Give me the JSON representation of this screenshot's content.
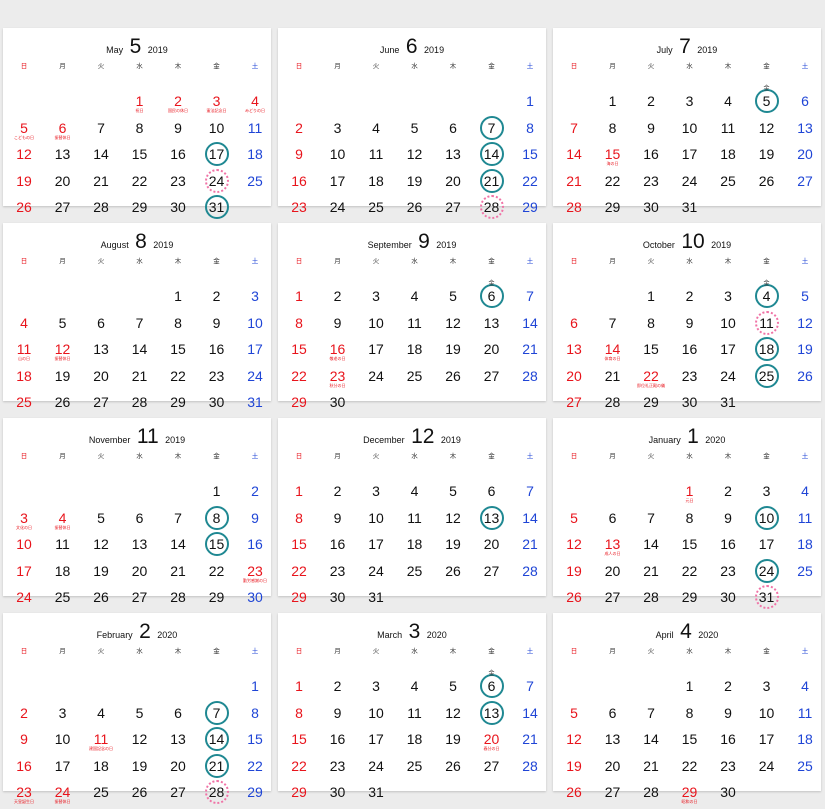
{
  "weekdays": [
    "日",
    "月",
    "火",
    "水",
    "木",
    "金",
    "土"
  ],
  "colors": {
    "sunday": "#e8141c",
    "saturday": "#1f45d6",
    "circle": "#1f8892",
    "dotted": "#f073a6"
  },
  "months": [
    {
      "name": "May",
      "num": "5",
      "year": "2019",
      "first": 3,
      "days": 31,
      "holidays": {
        "1": "祝日",
        "2": "国民の休日",
        "3": "憲法記念日",
        "4": "みどりの日",
        "5": "こどもの日",
        "6": "振替休日"
      },
      "circled": [
        17,
        31
      ],
      "dotted": [
        24
      ],
      "small_marks": {}
    },
    {
      "name": "June",
      "num": "6",
      "year": "2019",
      "first": 6,
      "days": 30,
      "holidays": {},
      "circled": [
        7,
        14,
        21
      ],
      "dotted": [
        28
      ],
      "small_marks": {}
    },
    {
      "name": "July",
      "num": "7",
      "year": "2019",
      "first": 1,
      "days": 31,
      "holidays": {
        "15": "海の日"
      },
      "circled": [
        5
      ],
      "dotted": [],
      "small_marks": {
        "5": "金"
      }
    },
    {
      "name": "August",
      "num": "8",
      "year": "2019",
      "first": 4,
      "days": 31,
      "holidays": {
        "11": "山の日",
        "12": "振替休日"
      },
      "circled": [],
      "dotted": [],
      "small_marks": {}
    },
    {
      "name": "September",
      "num": "9",
      "year": "2019",
      "first": 0,
      "days": 30,
      "holidays": {
        "16": "敬老の日",
        "23": "秋分の日"
      },
      "circled": [
        6
      ],
      "dotted": [],
      "small_marks": {
        "6": "金"
      }
    },
    {
      "name": "October",
      "num": "10",
      "year": "2019",
      "first": 2,
      "days": 31,
      "holidays": {
        "14": "体育の日",
        "22": "即位礼正殿の儀"
      },
      "circled": [
        4,
        18,
        25
      ],
      "dotted": [
        11
      ],
      "small_marks": {
        "4": "金"
      }
    },
    {
      "name": "November",
      "num": "11",
      "year": "2019",
      "first": 5,
      "days": 30,
      "holidays": {
        "3": "文化の日",
        "4": "振替休日",
        "23": "勤労感謝の日"
      },
      "circled": [
        8,
        15
      ],
      "dotted": [],
      "small_marks": {}
    },
    {
      "name": "December",
      "num": "12",
      "year": "2019",
      "first": 0,
      "days": 31,
      "holidays": {},
      "circled": [
        13
      ],
      "dotted": [],
      "small_marks": {}
    },
    {
      "name": "January",
      "num": "1",
      "year": "2020",
      "first": 3,
      "days": 31,
      "holidays": {
        "1": "元日",
        "13": "成人の日"
      },
      "circled": [
        10,
        24
      ],
      "dotted": [
        31
      ],
      "small_marks": {}
    },
    {
      "name": "February",
      "num": "2",
      "year": "2020",
      "first": 6,
      "days": 29,
      "holidays": {
        "11": "建国記念の日",
        "23": "天皇誕生日",
        "24": "振替休日"
      },
      "circled": [
        7,
        14,
        21
      ],
      "dotted": [
        28
      ],
      "small_marks": {}
    },
    {
      "name": "March",
      "num": "3",
      "year": "2020",
      "first": 0,
      "days": 31,
      "holidays": {
        "20": "春分の日"
      },
      "circled": [
        6,
        13
      ],
      "dotted": [],
      "small_marks": {
        "6": "金"
      }
    },
    {
      "name": "April",
      "num": "4",
      "year": "2020",
      "first": 3,
      "days": 30,
      "holidays": {
        "29": "昭和の日"
      },
      "circled": [],
      "dotted": [],
      "small_marks": {}
    }
  ]
}
